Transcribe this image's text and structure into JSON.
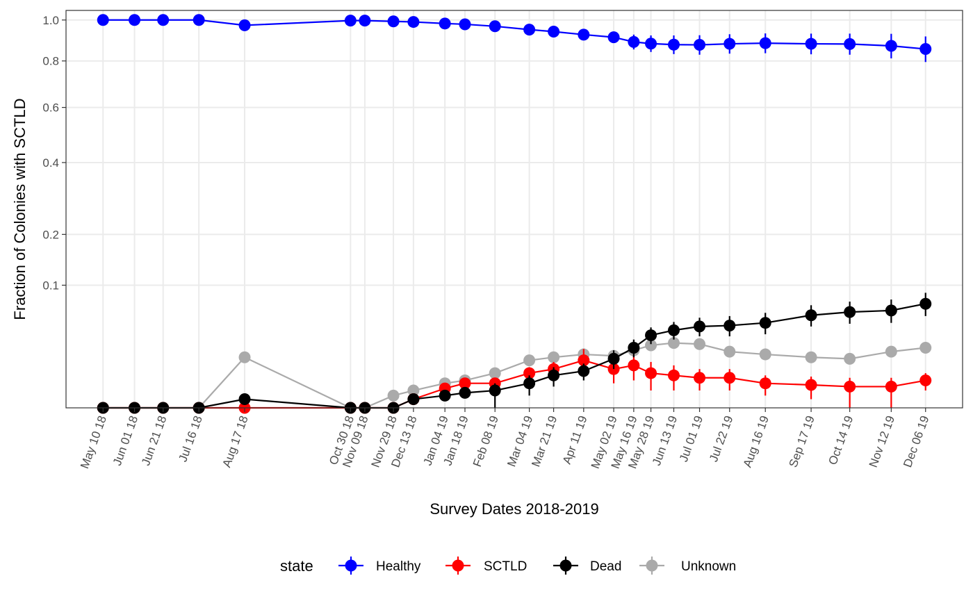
{
  "chart_data": {
    "type": "line",
    "xlabel": "Survey Dates 2018-2019",
    "ylabel": "Fraction of Colonies with SCTLD",
    "ylim": [
      0,
      1.05
    ],
    "x_scale": "date (days)",
    "y_scale": "square-root",
    "grid": true,
    "yticks": [
      0.1,
      0.2,
      0.4,
      0.6,
      0.8,
      1.0
    ],
    "ytick_labels": [
      "0.1",
      "0.2",
      "0.4",
      "0.6",
      "0.8",
      "1.0"
    ],
    "x": [
      "2018-05-10",
      "2018-06-01",
      "2018-06-21",
      "2018-07-16",
      "2018-08-17",
      "2018-10-30",
      "2018-11-09",
      "2018-11-29",
      "2018-12-13",
      "2019-01-04",
      "2019-01-18",
      "2019-02-08",
      "2019-03-04",
      "2019-03-21",
      "2019-04-11",
      "2019-05-02",
      "2019-05-16",
      "2019-05-28",
      "2019-06-13",
      "2019-07-01",
      "2019-07-22",
      "2019-08-16",
      "2019-09-17",
      "2019-10-14",
      "2019-11-12",
      "2019-12-06"
    ],
    "x_tick_labels": [
      "May 10 18",
      "Jun 01 18",
      "Jun 21 18",
      "Jul 16 18",
      "Aug 17 18",
      "Oct 30 18",
      "Nov 09 18",
      "Nov 29 18",
      "Dec 13 18",
      "Jan 04 19",
      "Jan 18 19",
      "Feb 08 19",
      "Mar 04 19",
      "Mar 21 19",
      "Apr 11 19",
      "May 02 19",
      "May 16 19",
      "May 28 19",
      "Jun 13 19",
      "Jul 01 19",
      "Jul 22 19",
      "Aug 16 19",
      "Sep 17 19",
      "Oct 14 19",
      "Nov 12 19",
      "Dec 06 19"
    ],
    "legend": {
      "title": "state",
      "position": "bottom"
    },
    "series": [
      {
        "name": "Healthy",
        "color": "#0000ff",
        "values": [
          1.0,
          1.0,
          1.0,
          1.0,
          0.973,
          0.997,
          0.997,
          0.993,
          0.99,
          0.982,
          0.978,
          0.968,
          0.951,
          0.941,
          0.926,
          0.913,
          0.89,
          0.882,
          0.877,
          0.876,
          0.881,
          0.884,
          0.881,
          0.88,
          0.871,
          0.856
        ],
        "errors": [
          0,
          0,
          0,
          0,
          0,
          0,
          0,
          0,
          0,
          0.01,
          0.01,
          0.01,
          0.015,
          0.015,
          0.015,
          0.022,
          0.036,
          0.04,
          0.045,
          0.047,
          0.047,
          0.048,
          0.05,
          0.051,
          0.059,
          0.061
        ]
      },
      {
        "name": "SCTLD",
        "color": "#ff0000",
        "values": [
          0.0,
          0.0,
          0.0,
          0.0,
          0.0,
          0.0,
          0.0,
          0.0,
          0.0005,
          0.0025,
          0.004,
          0.004,
          0.008,
          0.01,
          0.015,
          0.01,
          0.012,
          0.008,
          0.007,
          0.006,
          0.006,
          0.004,
          0.0035,
          0.003,
          0.003,
          0.005
        ],
        "errors": [
          0,
          0,
          0,
          0,
          0,
          0,
          0,
          0,
          0,
          0,
          0,
          0.002,
          0.003,
          0.004,
          0.008,
          0.006,
          0.007,
          0.006,
          0.005,
          0.004,
          0.004,
          0.003,
          0.003,
          0.003,
          0.003,
          0.003
        ]
      },
      {
        "name": "Dead",
        "color": "#000000",
        "values": [
          0.0,
          0.0,
          0.0,
          0.0,
          0.0005,
          0.0,
          0.0,
          0.0,
          0.0005,
          0.001,
          0.0015,
          0.002,
          0.004,
          0.007,
          0.009,
          0.016,
          0.024,
          0.035,
          0.04,
          0.044,
          0.045,
          0.048,
          0.057,
          0.061,
          0.063,
          0.072
        ],
        "errors": [
          0,
          0,
          0,
          0,
          0,
          0,
          0,
          0,
          0,
          0,
          0,
          0.002,
          0.003,
          0.004,
          0.004,
          0.006,
          0.007,
          0.008,
          0.009,
          0.01,
          0.011,
          0.012,
          0.013,
          0.014,
          0.015,
          0.016
        ]
      },
      {
        "name": "Unknown",
        "color": "#aaaaaa",
        "values": [
          0.0,
          0.0,
          0.0,
          0.0,
          0.017,
          0.0,
          0.0,
          0.001,
          0.002,
          0.004,
          0.005,
          0.008,
          0.015,
          0.017,
          0.019,
          0.018,
          0.022,
          0.026,
          0.028,
          0.027,
          0.021,
          0.019,
          0.017,
          0.016,
          0.021,
          0.024
        ],
        "errors": [
          0,
          0,
          0,
          0,
          0,
          0,
          0,
          0,
          0,
          0,
          0,
          0,
          0,
          0,
          0,
          0,
          0,
          0,
          0,
          0,
          0,
          0,
          0,
          0,
          0,
          0
        ]
      }
    ]
  }
}
